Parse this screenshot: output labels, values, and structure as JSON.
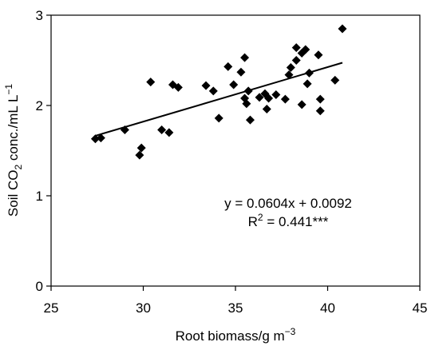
{
  "chart_data": {
    "type": "scatter",
    "xlabel": {
      "main": "Root biomass/g m",
      "exp": "−3"
    },
    "ylabel": {
      "pre": "Soil CO",
      "sub": "2",
      "mid": " conc./mL L",
      "exp": "−1"
    },
    "xlim": [
      25,
      45
    ],
    "ylim": [
      0,
      3
    ],
    "x_ticks": [
      25,
      30,
      35,
      40,
      45
    ],
    "y_ticks": [
      0,
      1,
      2,
      3
    ],
    "grid": false,
    "legend": "none",
    "marker_color": "#000000",
    "line_color": "#000000",
    "annotation": {
      "equation": "y = 0.0604x + 0.0092",
      "r2_pre": "R",
      "r2_exp": "2",
      "r2_post": " = 0.441***"
    },
    "trendline": {
      "slope": 0.0604,
      "intercept": 0.0092,
      "x_range": [
        27.4,
        40.8
      ]
    },
    "points": [
      {
        "x": 27.4,
        "y": 1.63
      },
      {
        "x": 27.7,
        "y": 1.64
      },
      {
        "x": 29.0,
        "y": 1.73
      },
      {
        "x": 29.8,
        "y": 1.45
      },
      {
        "x": 29.9,
        "y": 1.53
      },
      {
        "x": 30.4,
        "y": 2.26
      },
      {
        "x": 31.0,
        "y": 1.73
      },
      {
        "x": 31.4,
        "y": 1.7
      },
      {
        "x": 31.6,
        "y": 2.23
      },
      {
        "x": 31.9,
        "y": 2.2
      },
      {
        "x": 33.4,
        "y": 2.22
      },
      {
        "x": 33.8,
        "y": 2.16
      },
      {
        "x": 34.1,
        "y": 1.86
      },
      {
        "x": 34.6,
        "y": 2.43
      },
      {
        "x": 34.9,
        "y": 2.23
      },
      {
        "x": 35.3,
        "y": 2.37
      },
      {
        "x": 35.5,
        "y": 2.53
      },
      {
        "x": 35.5,
        "y": 2.08
      },
      {
        "x": 35.6,
        "y": 2.02
      },
      {
        "x": 35.7,
        "y": 2.16
      },
      {
        "x": 35.8,
        "y": 1.84
      },
      {
        "x": 36.3,
        "y": 2.09
      },
      {
        "x": 36.6,
        "y": 2.13
      },
      {
        "x": 36.8,
        "y": 2.08
      },
      {
        "x": 36.7,
        "y": 1.96
      },
      {
        "x": 37.2,
        "y": 2.12
      },
      {
        "x": 37.7,
        "y": 2.07
      },
      {
        "x": 37.9,
        "y": 2.34
      },
      {
        "x": 38.0,
        "y": 2.42
      },
      {
        "x": 38.3,
        "y": 2.64
      },
      {
        "x": 38.3,
        "y": 2.5
      },
      {
        "x": 38.6,
        "y": 2.58
      },
      {
        "x": 38.8,
        "y": 2.62
      },
      {
        "x": 38.6,
        "y": 2.01
      },
      {
        "x": 38.9,
        "y": 2.24
      },
      {
        "x": 39.0,
        "y": 2.36
      },
      {
        "x": 39.5,
        "y": 2.56
      },
      {
        "x": 39.6,
        "y": 2.07
      },
      {
        "x": 39.6,
        "y": 1.94
      },
      {
        "x": 40.4,
        "y": 2.28
      },
      {
        "x": 40.8,
        "y": 2.85
      }
    ]
  }
}
